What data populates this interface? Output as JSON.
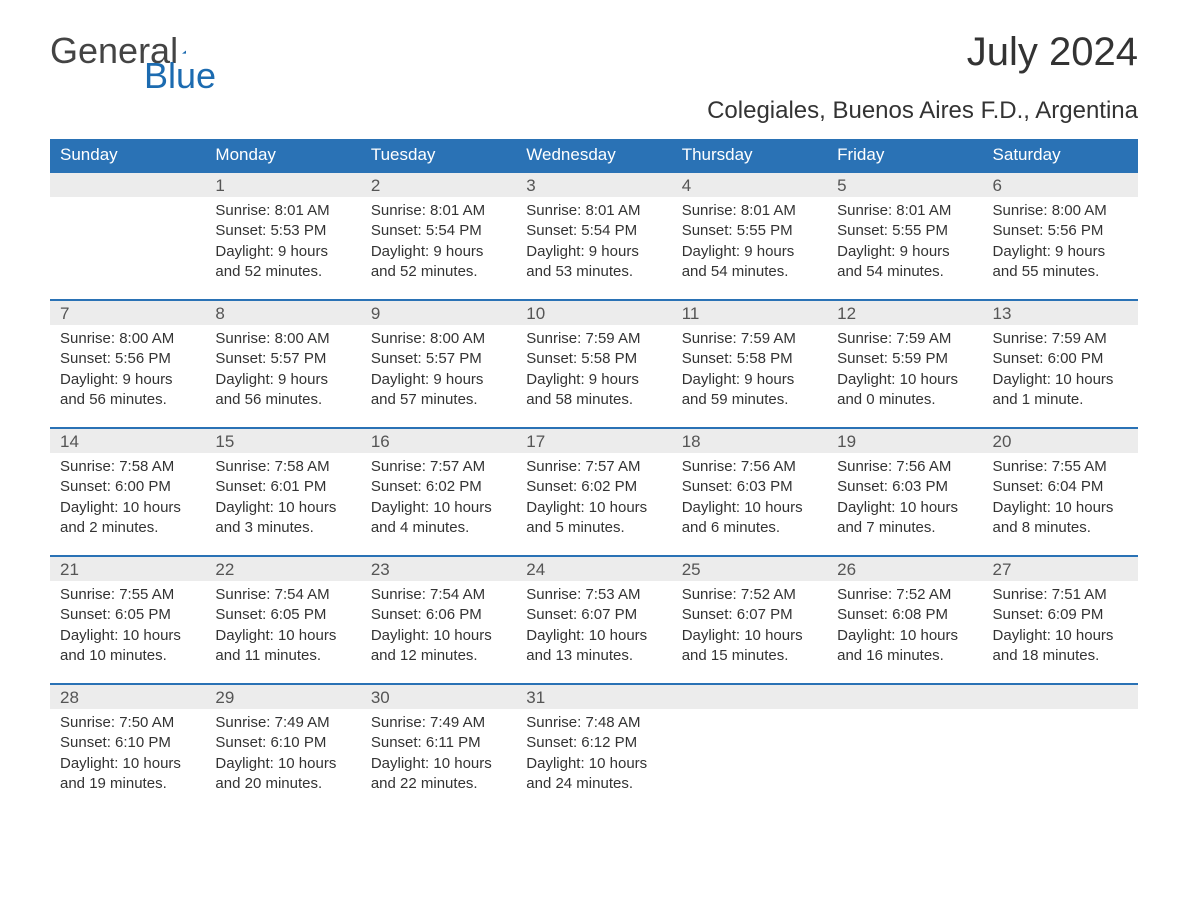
{
  "brand": {
    "general": "General",
    "blue": "Blue"
  },
  "title": "July 2024",
  "location": "Colegiales, Buenos Aires F.D., Argentina",
  "colors": {
    "header_bg": "#2a72b5",
    "header_text": "#ffffff",
    "daynum_bg": "#ececec",
    "week_border": "#2a72b5",
    "text": "#333333",
    "logo_gray": "#444444",
    "logo_blue": "#1c6bb0",
    "page_bg": "#ffffff"
  },
  "typography": {
    "title_fontsize": 40,
    "location_fontsize": 24,
    "weekday_fontsize": 17,
    "daynum_fontsize": 17,
    "body_fontsize": 15,
    "logo_fontsize": 36
  },
  "weekdays": [
    "Sunday",
    "Monday",
    "Tuesday",
    "Wednesday",
    "Thursday",
    "Friday",
    "Saturday"
  ],
  "weeks": [
    [
      {
        "day": "",
        "sunrise": "",
        "sunset": "",
        "daylight1": "",
        "daylight2": ""
      },
      {
        "day": "1",
        "sunrise": "Sunrise: 8:01 AM",
        "sunset": "Sunset: 5:53 PM",
        "daylight1": "Daylight: 9 hours",
        "daylight2": "and 52 minutes."
      },
      {
        "day": "2",
        "sunrise": "Sunrise: 8:01 AM",
        "sunset": "Sunset: 5:54 PM",
        "daylight1": "Daylight: 9 hours",
        "daylight2": "and 52 minutes."
      },
      {
        "day": "3",
        "sunrise": "Sunrise: 8:01 AM",
        "sunset": "Sunset: 5:54 PM",
        "daylight1": "Daylight: 9 hours",
        "daylight2": "and 53 minutes."
      },
      {
        "day": "4",
        "sunrise": "Sunrise: 8:01 AM",
        "sunset": "Sunset: 5:55 PM",
        "daylight1": "Daylight: 9 hours",
        "daylight2": "and 54 minutes."
      },
      {
        "day": "5",
        "sunrise": "Sunrise: 8:01 AM",
        "sunset": "Sunset: 5:55 PM",
        "daylight1": "Daylight: 9 hours",
        "daylight2": "and 54 minutes."
      },
      {
        "day": "6",
        "sunrise": "Sunrise: 8:00 AM",
        "sunset": "Sunset: 5:56 PM",
        "daylight1": "Daylight: 9 hours",
        "daylight2": "and 55 minutes."
      }
    ],
    [
      {
        "day": "7",
        "sunrise": "Sunrise: 8:00 AM",
        "sunset": "Sunset: 5:56 PM",
        "daylight1": "Daylight: 9 hours",
        "daylight2": "and 56 minutes."
      },
      {
        "day": "8",
        "sunrise": "Sunrise: 8:00 AM",
        "sunset": "Sunset: 5:57 PM",
        "daylight1": "Daylight: 9 hours",
        "daylight2": "and 56 minutes."
      },
      {
        "day": "9",
        "sunrise": "Sunrise: 8:00 AM",
        "sunset": "Sunset: 5:57 PM",
        "daylight1": "Daylight: 9 hours",
        "daylight2": "and 57 minutes."
      },
      {
        "day": "10",
        "sunrise": "Sunrise: 7:59 AM",
        "sunset": "Sunset: 5:58 PM",
        "daylight1": "Daylight: 9 hours",
        "daylight2": "and 58 minutes."
      },
      {
        "day": "11",
        "sunrise": "Sunrise: 7:59 AM",
        "sunset": "Sunset: 5:58 PM",
        "daylight1": "Daylight: 9 hours",
        "daylight2": "and 59 minutes."
      },
      {
        "day": "12",
        "sunrise": "Sunrise: 7:59 AM",
        "sunset": "Sunset: 5:59 PM",
        "daylight1": "Daylight: 10 hours",
        "daylight2": "and 0 minutes."
      },
      {
        "day": "13",
        "sunrise": "Sunrise: 7:59 AM",
        "sunset": "Sunset: 6:00 PM",
        "daylight1": "Daylight: 10 hours",
        "daylight2": "and 1 minute."
      }
    ],
    [
      {
        "day": "14",
        "sunrise": "Sunrise: 7:58 AM",
        "sunset": "Sunset: 6:00 PM",
        "daylight1": "Daylight: 10 hours",
        "daylight2": "and 2 minutes."
      },
      {
        "day": "15",
        "sunrise": "Sunrise: 7:58 AM",
        "sunset": "Sunset: 6:01 PM",
        "daylight1": "Daylight: 10 hours",
        "daylight2": "and 3 minutes."
      },
      {
        "day": "16",
        "sunrise": "Sunrise: 7:57 AM",
        "sunset": "Sunset: 6:02 PM",
        "daylight1": "Daylight: 10 hours",
        "daylight2": "and 4 minutes."
      },
      {
        "day": "17",
        "sunrise": "Sunrise: 7:57 AM",
        "sunset": "Sunset: 6:02 PM",
        "daylight1": "Daylight: 10 hours",
        "daylight2": "and 5 minutes."
      },
      {
        "day": "18",
        "sunrise": "Sunrise: 7:56 AM",
        "sunset": "Sunset: 6:03 PM",
        "daylight1": "Daylight: 10 hours",
        "daylight2": "and 6 minutes."
      },
      {
        "day": "19",
        "sunrise": "Sunrise: 7:56 AM",
        "sunset": "Sunset: 6:03 PM",
        "daylight1": "Daylight: 10 hours",
        "daylight2": "and 7 minutes."
      },
      {
        "day": "20",
        "sunrise": "Sunrise: 7:55 AM",
        "sunset": "Sunset: 6:04 PM",
        "daylight1": "Daylight: 10 hours",
        "daylight2": "and 8 minutes."
      }
    ],
    [
      {
        "day": "21",
        "sunrise": "Sunrise: 7:55 AM",
        "sunset": "Sunset: 6:05 PM",
        "daylight1": "Daylight: 10 hours",
        "daylight2": "and 10 minutes."
      },
      {
        "day": "22",
        "sunrise": "Sunrise: 7:54 AM",
        "sunset": "Sunset: 6:05 PM",
        "daylight1": "Daylight: 10 hours",
        "daylight2": "and 11 minutes."
      },
      {
        "day": "23",
        "sunrise": "Sunrise: 7:54 AM",
        "sunset": "Sunset: 6:06 PM",
        "daylight1": "Daylight: 10 hours",
        "daylight2": "and 12 minutes."
      },
      {
        "day": "24",
        "sunrise": "Sunrise: 7:53 AM",
        "sunset": "Sunset: 6:07 PM",
        "daylight1": "Daylight: 10 hours",
        "daylight2": "and 13 minutes."
      },
      {
        "day": "25",
        "sunrise": "Sunrise: 7:52 AM",
        "sunset": "Sunset: 6:07 PM",
        "daylight1": "Daylight: 10 hours",
        "daylight2": "and 15 minutes."
      },
      {
        "day": "26",
        "sunrise": "Sunrise: 7:52 AM",
        "sunset": "Sunset: 6:08 PM",
        "daylight1": "Daylight: 10 hours",
        "daylight2": "and 16 minutes."
      },
      {
        "day": "27",
        "sunrise": "Sunrise: 7:51 AM",
        "sunset": "Sunset: 6:09 PM",
        "daylight1": "Daylight: 10 hours",
        "daylight2": "and 18 minutes."
      }
    ],
    [
      {
        "day": "28",
        "sunrise": "Sunrise: 7:50 AM",
        "sunset": "Sunset: 6:10 PM",
        "daylight1": "Daylight: 10 hours",
        "daylight2": "and 19 minutes."
      },
      {
        "day": "29",
        "sunrise": "Sunrise: 7:49 AM",
        "sunset": "Sunset: 6:10 PM",
        "daylight1": "Daylight: 10 hours",
        "daylight2": "and 20 minutes."
      },
      {
        "day": "30",
        "sunrise": "Sunrise: 7:49 AM",
        "sunset": "Sunset: 6:11 PM",
        "daylight1": "Daylight: 10 hours",
        "daylight2": "and 22 minutes."
      },
      {
        "day": "31",
        "sunrise": "Sunrise: 7:48 AM",
        "sunset": "Sunset: 6:12 PM",
        "daylight1": "Daylight: 10 hours",
        "daylight2": "and 24 minutes."
      },
      {
        "day": "",
        "sunrise": "",
        "sunset": "",
        "daylight1": "",
        "daylight2": ""
      },
      {
        "day": "",
        "sunrise": "",
        "sunset": "",
        "daylight1": "",
        "daylight2": ""
      },
      {
        "day": "",
        "sunrise": "",
        "sunset": "",
        "daylight1": "",
        "daylight2": ""
      }
    ]
  ]
}
